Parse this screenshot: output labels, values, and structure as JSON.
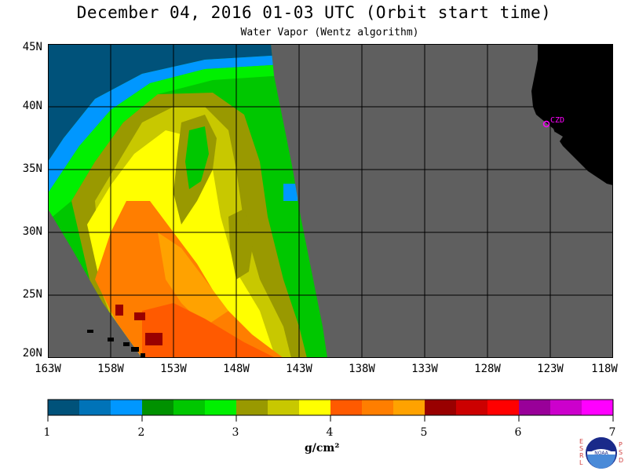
{
  "header": {
    "title": "December 04, 2016  01-03 UTC  (Orbit start time)",
    "subtitle": "Water Vapor (Wentz algorithm)"
  },
  "map": {
    "lat_labels": [
      "45N",
      "40N",
      "35N",
      "30N",
      "25N",
      "20N"
    ],
    "lon_labels": [
      "163W",
      "158W",
      "153W",
      "148W",
      "143W",
      "138W",
      "133W",
      "128W",
      "123W",
      "118W"
    ],
    "station_label": "CZD",
    "colors": {
      "no_data": "#5f5f5f",
      "land": "#000000",
      "grid": "#000000",
      "station": "#ff00ff"
    }
  },
  "colorbar": {
    "colors": [
      "#00527a",
      "#0073b8",
      "#0097ff",
      "#009100",
      "#00c700",
      "#00f000",
      "#999900",
      "#c8c800",
      "#ffff00",
      "#ff5a00",
      "#ff7e00",
      "#ffa200",
      "#990000",
      "#cc0000",
      "#ff0000",
      "#990099",
      "#cc00cc",
      "#ff00ff"
    ],
    "tick_labels": [
      "1",
      "2",
      "3",
      "4",
      "5",
      "6",
      "7"
    ],
    "units": "g/cm²"
  },
  "logo": {
    "left_letters": "ESRL",
    "right_letters": "PSD",
    "center_text": "NOAA"
  }
}
